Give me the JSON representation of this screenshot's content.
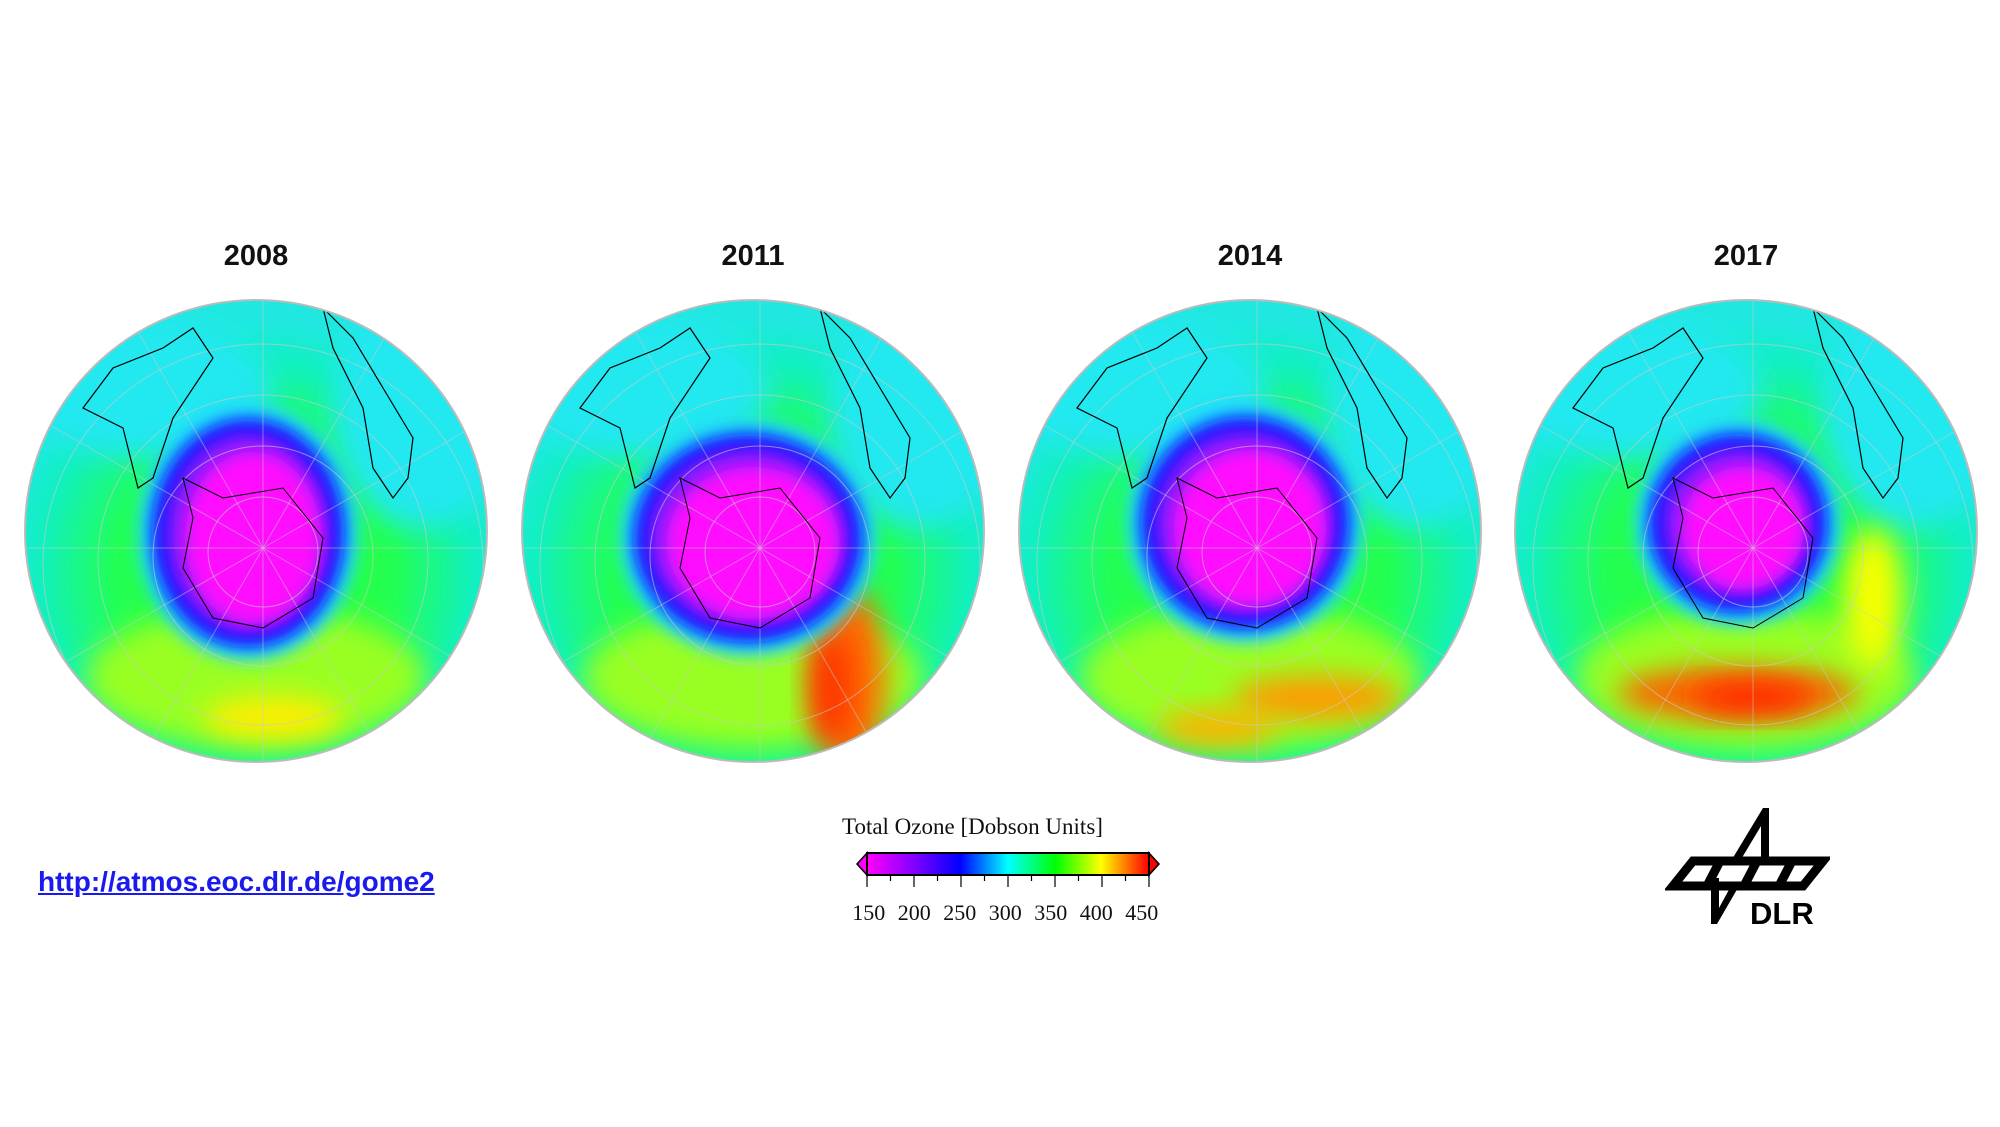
{
  "panels": [
    {
      "year": "2008"
    },
    {
      "year": "2011"
    },
    {
      "year": "2014"
    },
    {
      "year": "2017"
    }
  ],
  "link": "http://atmos.eoc.dlr.de/gome2",
  "colorbar": {
    "title": "Total Ozone [Dobson Units]",
    "ticks": [
      "150",
      "200",
      "250",
      "300",
      "350",
      "400",
      "450"
    ],
    "colors": [
      "#ff00ff",
      "#8000ff",
      "#0000ff",
      "#00ffff",
      "#00ff00",
      "#ffff00",
      "#ff0000"
    ]
  },
  "logo": {
    "text": "DLR"
  }
}
